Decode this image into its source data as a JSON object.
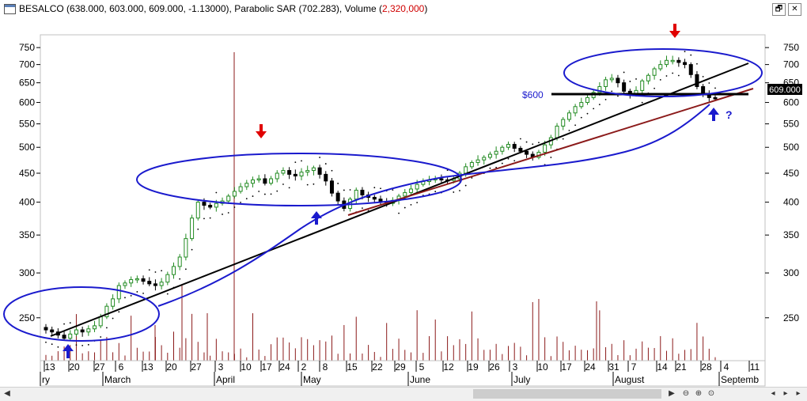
{
  "window": {
    "icon": "chart-window-icon",
    "title_prefix": "BESALCO (638.000, 603.000, 609.000, -1.13000), Parabolic SAR (702.283), Volume (",
    "title_volume": "2,320,000",
    "title_suffix": ")",
    "restore_label": "🗗",
    "close_label": "✕"
  },
  "scrollbar": {
    "left_arrow": "◀",
    "right_arrow": "▶",
    "zoom_out": "⊖",
    "zoom_in": "⊕",
    "zoom_reset": "⊙",
    "nav_left": "◂",
    "nav_right": "▸"
  },
  "chart_data": {
    "type": "candlestick",
    "symbol": "BESALCO",
    "scale": "log",
    "ylim": [
      210,
      790
    ],
    "y_ticks": [
      250,
      300,
      350,
      400,
      450,
      500,
      550,
      600,
      650,
      700,
      750
    ],
    "last_price_label": "609.000",
    "annotation_600": "$600",
    "question_mark": "?",
    "x_day_labels": [
      "13",
      "20",
      "27",
      "6",
      "13",
      "20",
      "27",
      "3",
      "10",
      "17",
      "24",
      "2",
      "8",
      "15",
      "22",
      "29",
      "5",
      "12",
      "19",
      "26",
      "3",
      "10",
      "17",
      "24",
      "31",
      "7",
      "14",
      "21",
      "28",
      "4",
      "11"
    ],
    "x_month_labels": [
      "ry",
      "March",
      "April",
      "May",
      "June",
      "July",
      "August",
      "Septemb"
    ],
    "close_series": [
      238,
      236,
      233,
      230,
      234,
      238,
      236,
      239,
      242,
      251,
      262,
      270,
      285,
      288,
      292,
      293,
      290,
      287,
      285,
      289,
      298,
      308,
      320,
      345,
      375,
      400,
      395,
      392,
      398,
      402,
      410,
      418,
      426,
      432,
      438,
      440,
      432,
      440,
      450,
      455,
      448,
      445,
      452,
      455,
      460,
      448,
      436,
      415,
      402,
      390,
      405,
      420,
      412,
      408,
      405,
      400,
      398,
      403,
      410,
      416,
      422,
      430,
      435,
      438,
      440,
      438,
      437,
      440,
      450,
      462,
      470,
      475,
      480,
      486,
      492,
      500,
      506,
      498,
      492,
      486,
      480,
      490,
      505,
      520,
      545,
      560,
      575,
      590,
      600,
      612,
      625,
      640,
      658,
      662,
      650,
      628,
      620,
      630,
      655,
      670,
      688,
      700,
      712,
      712,
      706,
      700,
      672,
      640,
      620,
      612,
      609
    ]
  }
}
